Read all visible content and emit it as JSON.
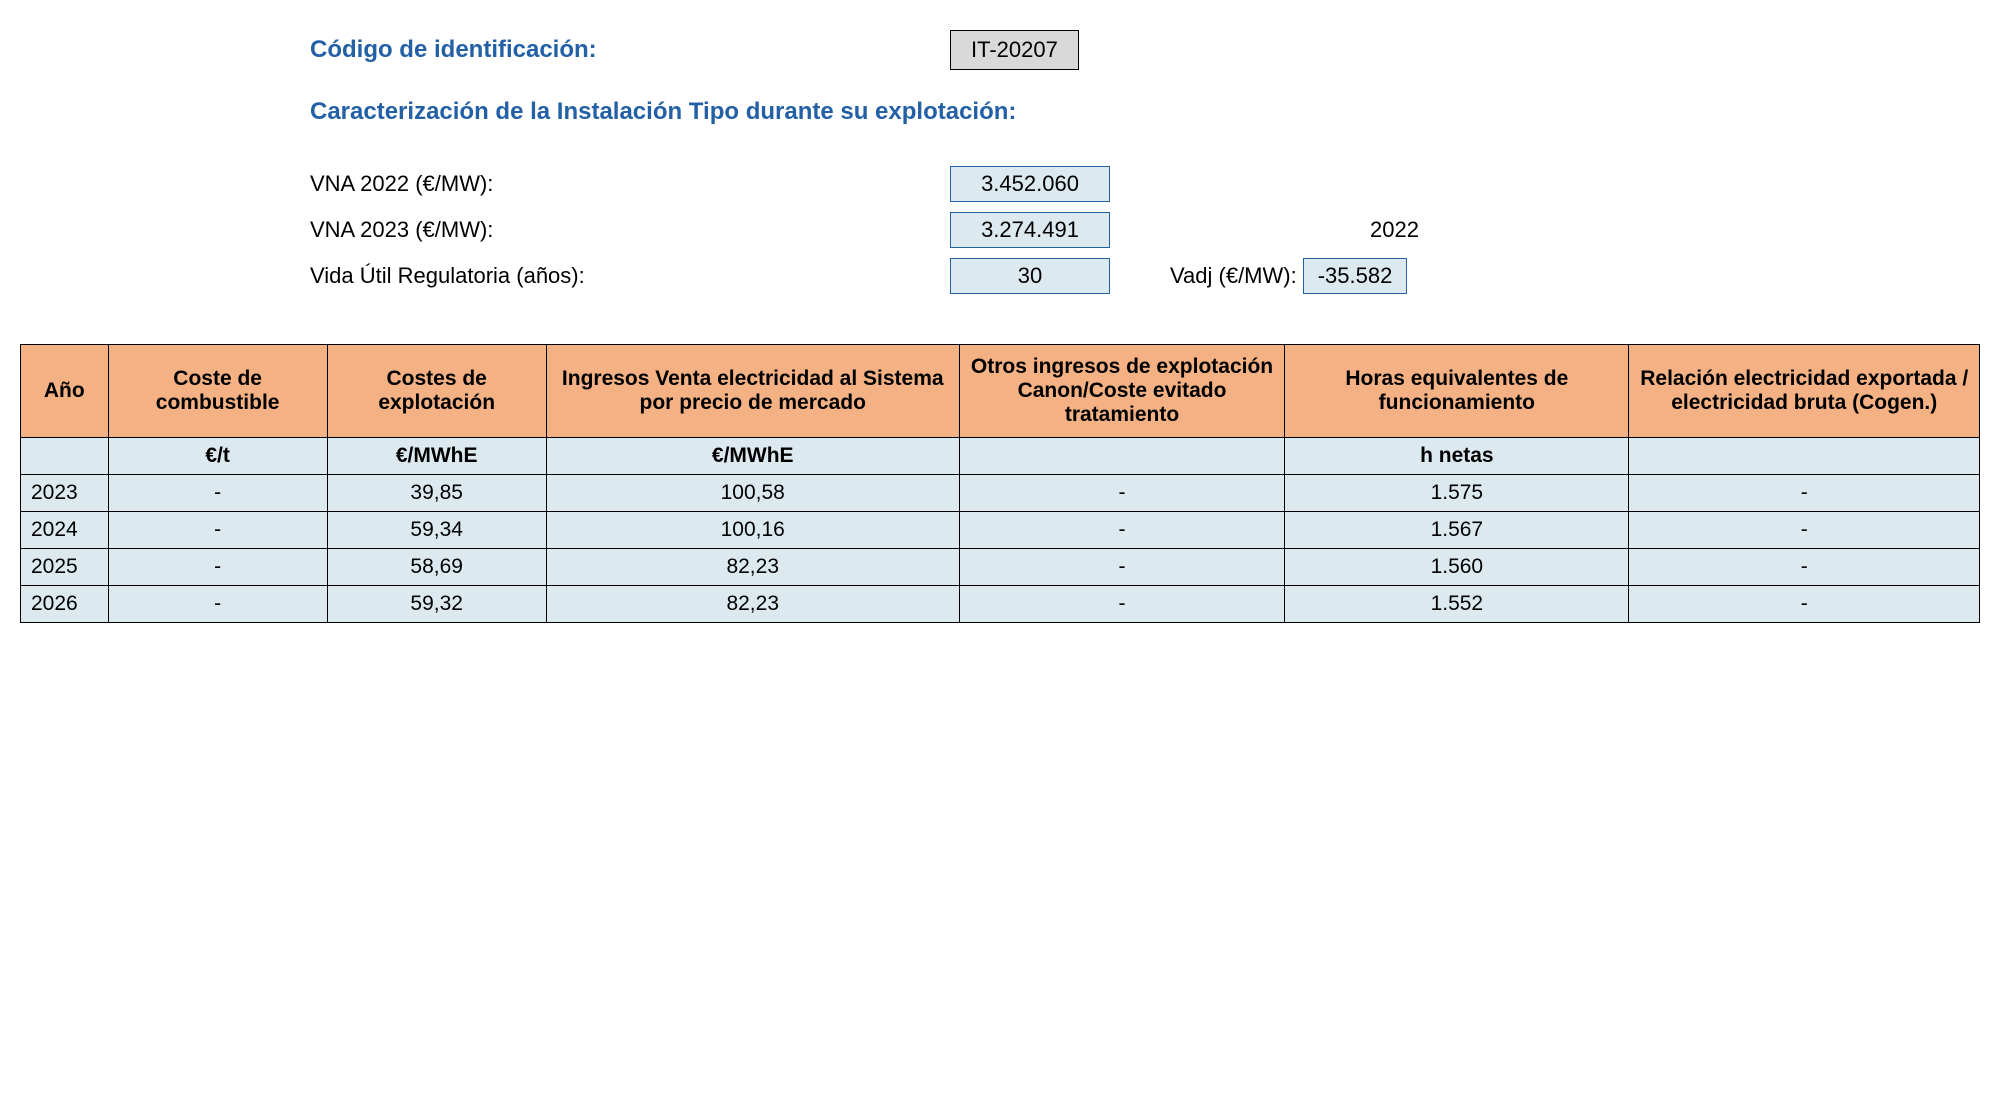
{
  "header": {
    "id_label": "Código de identificación:",
    "id_value": "IT-20207",
    "subtitle": "Caracterización de la Instalación Tipo durante su explotación:"
  },
  "params": {
    "vna_2022_label": "VNA 2022 (€/MW):",
    "vna_2022_value": "3.452.060",
    "vna_2023_label": "VNA 2023 (€/MW):",
    "vna_2023_value": "3.274.491",
    "year_ref": "2022",
    "vida_label": "Vida Útil Regulatoria (años):",
    "vida_value": "30",
    "vadj_label": "Vadj (€/MW):",
    "vadj_value": "-35.582"
  },
  "table": {
    "columns": [
      "Año",
      "Coste de combustible",
      "Costes de explotación",
      "Ingresos Venta electricidad al Sistema por precio de mercado",
      "Otros ingresos de explotación Canon/Coste evitado tratamiento",
      "Horas equivalentes de funcionamiento",
      "Relación electricidad exportada / electricidad bruta\n(Cogen.)"
    ],
    "units": [
      "",
      "€/t",
      "€/MWhE",
      "€/MWhE",
      "",
      "h netas",
      ""
    ],
    "rows": [
      [
        "2023",
        "-",
        "39,85",
        "100,58",
        "-",
        "1.575",
        "-"
      ],
      [
        "2024",
        "-",
        "59,34",
        "100,16",
        "-",
        "1.567",
        "-"
      ],
      [
        "2025",
        "-",
        "58,69",
        "82,23",
        "-",
        "1.560",
        "-"
      ],
      [
        "2026",
        "-",
        "59,32",
        "82,23",
        "-",
        "1.552",
        "-"
      ]
    ],
    "header_bg": "#f4b183",
    "cell_bg": "#dce9ef",
    "border_color": "#000000"
  }
}
